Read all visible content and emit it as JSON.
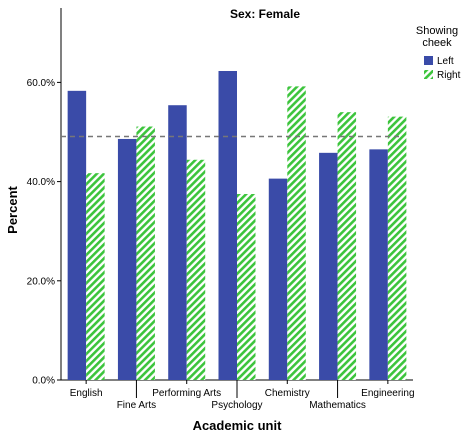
{
  "chart_data": {
    "type": "bar",
    "title": "Sex: Female",
    "xlabel": "Academic unit",
    "ylabel": "Percent",
    "categories": [
      "English",
      "Fine Arts",
      "Performing Arts",
      "Psychology",
      "Chemistry",
      "Mathematics",
      "Engineering"
    ],
    "series": [
      {
        "name": "Left",
        "values": [
          58.3,
          48.6,
          55.4,
          62.3,
          40.6,
          45.8,
          46.5
        ],
        "color": "#3a4ba8",
        "pattern": "solid"
      },
      {
        "name": "Right",
        "values": [
          41.7,
          51.1,
          44.4,
          37.5,
          59.2,
          54.0,
          53.1
        ],
        "color": "#3cc43c",
        "pattern": "hatch"
      }
    ],
    "reference_line": {
      "value": 49.1,
      "style": "dashed",
      "color": "#777777"
    },
    "ylim": [
      0,
      75
    ],
    "yticks": [
      0,
      20,
      40,
      60
    ],
    "ytick_labels": [
      "0.0%",
      "20.0%",
      "40.0%",
      "60.0%"
    ],
    "legend": {
      "title": "Showing cheek",
      "position": "top-right"
    },
    "grid": false
  }
}
